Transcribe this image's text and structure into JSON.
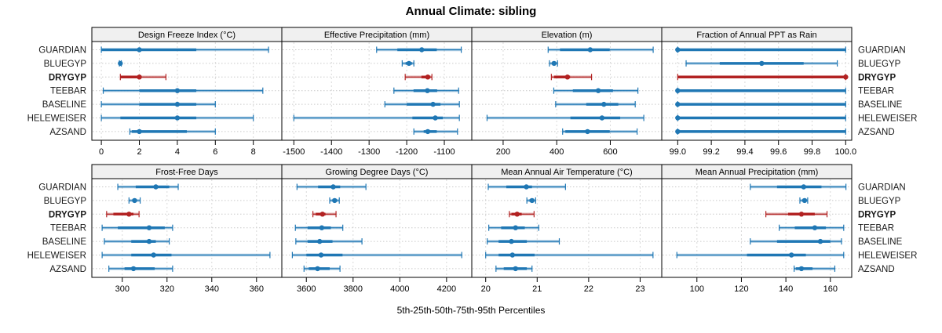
{
  "title": "Annual Climate: sibling",
  "caption": "5th-25th-50th-75th-95th Percentiles",
  "colors": {
    "blue": "#1f77b4",
    "red": "#b22222",
    "strip_bg": "#f0f0f0",
    "panel_border": "#000000",
    "grid": "#d9d9d9",
    "guide": "#c9c9c9",
    "text": "#000000"
  },
  "chart_data": {
    "type": "dotplot",
    "layout": "2 rows x 4 columns trellis",
    "percentiles": [
      "5th",
      "25th",
      "50th",
      "75th",
      "95th"
    ],
    "categories": [
      "GUARDIAN",
      "BLUEGYP",
      "DRYGYP",
      "TEEBAR",
      "BASELINE",
      "HELEWEISER",
      "AZSAND"
    ],
    "highlight_category": "DRYGYP",
    "panels": [
      {
        "title": "Design Freeze Index (°C)",
        "domain": [
          -0.5,
          9.5
        ],
        "ticks": [
          0,
          2,
          4,
          6,
          8
        ],
        "tick_labels": [
          "0",
          "2",
          "4",
          "6",
          "8"
        ],
        "values": [
          [
            0,
            0,
            2,
            5,
            8.8
          ],
          [
            0.95,
            1,
            1,
            1,
            1.05
          ],
          [
            1,
            1,
            2,
            2.1,
            3.4
          ],
          [
            0.1,
            2,
            4,
            5,
            8.5
          ],
          [
            0,
            2,
            4,
            5,
            6
          ],
          [
            0,
            1,
            4,
            5,
            8
          ],
          [
            1.5,
            1.6,
            2,
            4.5,
            6
          ]
        ]
      },
      {
        "title": "Effective Precipitation (mm)",
        "domain": [
          -1532,
          -1027
        ],
        "ticks": [
          -1500,
          -1400,
          -1300,
          -1200,
          -1100
        ],
        "tick_labels": [
          "-1500",
          "-1400",
          "-1300",
          "-1200",
          "-1100"
        ],
        "values": [
          [
            -1280,
            -1225,
            -1160,
            -1120,
            -1055
          ],
          [
            -1212,
            -1203,
            -1194,
            -1186,
            -1181
          ],
          [
            -1204,
            -1161,
            -1144,
            -1137,
            -1133
          ],
          [
            -1234,
            -1182,
            -1145,
            -1119,
            -1062
          ],
          [
            -1258,
            -1200,
            -1130,
            -1110,
            -1060
          ],
          [
            -1500,
            -1185,
            -1124,
            -1104,
            -1060
          ],
          [
            -1181,
            -1155,
            -1144,
            -1120,
            -1065
          ]
        ]
      },
      {
        "title": "Elevation (m)",
        "domain": [
          83,
          792
        ],
        "ticks": [
          200,
          400,
          600
        ],
        "tick_labels": [
          "200",
          "400",
          "600"
        ],
        "values": [
          [
            368,
            412,
            525,
            598,
            760
          ],
          [
            373,
            383,
            390,
            397,
            403
          ],
          [
            380,
            390,
            440,
            450,
            530
          ],
          [
            389,
            460,
            555,
            610,
            703
          ],
          [
            396,
            510,
            576,
            630,
            693
          ],
          [
            140,
            451,
            569,
            637,
            725
          ],
          [
            422,
            432,
            515,
            598,
            700
          ]
        ]
      },
      {
        "title": "Fraction of Annual PPT as Rain",
        "domain": [
          98.905,
          100.036
        ],
        "ticks": [
          99.0,
          99.2,
          99.4,
          99.6,
          99.8,
          100.0
        ],
        "tick_labels": [
          "99.0",
          "99.2",
          "99.4",
          "99.6",
          "99.8",
          "100.0"
        ],
        "values": [
          [
            99.0,
            99.0,
            99.0,
            100.0,
            100.0
          ],
          [
            99.05,
            99.25,
            99.5,
            99.75,
            99.95
          ],
          [
            99.0,
            99.0,
            100.0,
            100.0,
            100.0
          ],
          [
            99.0,
            99.0,
            99.0,
            100.0,
            100.0
          ],
          [
            99.0,
            99.0,
            99.0,
            100.0,
            100.0
          ],
          [
            99.0,
            99.0,
            99.0,
            100.0,
            100.0
          ],
          [
            99.0,
            99.0,
            99.0,
            100.0,
            100.0
          ]
        ]
      },
      {
        "title": "Frost-Free Days",
        "domain": [
          286.4,
          371.3
        ],
        "ticks": [
          300,
          320,
          340,
          360
        ],
        "tick_labels": [
          "300",
          "320",
          "340",
          "360"
        ],
        "values": [
          [
            298,
            306,
            315,
            321,
            325
          ],
          [
            303,
            304.5,
            305.5,
            306.5,
            308
          ],
          [
            293,
            296,
            303,
            305,
            307.5
          ],
          [
            291,
            298,
            312,
            319,
            322.5
          ],
          [
            292,
            304,
            312,
            315,
            321
          ],
          [
            291,
            304,
            314,
            322,
            366
          ],
          [
            294,
            301,
            305,
            314.5,
            322.5
          ]
        ]
      },
      {
        "title": "Growing Degree Days (°C)",
        "domain": [
          3495,
          4308
        ],
        "ticks": [
          3600,
          3800,
          4000,
          4200
        ],
        "tick_labels": [
          "3600",
          "3800",
          "4000",
          "4200"
        ],
        "values": [
          [
            3560,
            3650,
            3715,
            3745,
            3855
          ],
          [
            3700,
            3712,
            3721,
            3731,
            3741
          ],
          [
            3628,
            3640,
            3669,
            3682,
            3727
          ],
          [
            3553,
            3605,
            3666,
            3705,
            3756
          ],
          [
            3555,
            3605,
            3657,
            3712,
            3838
          ],
          [
            3540,
            3600,
            3663,
            3755,
            4265
          ],
          [
            3590,
            3610,
            3648,
            3700,
            3744
          ]
        ]
      },
      {
        "title": "Mean Annual Air Temperature (°C)",
        "domain": [
          19.73,
          23.42
        ],
        "ticks": [
          20,
          21,
          22,
          23
        ],
        "tick_labels": [
          "20",
          "21",
          "22",
          "23"
        ],
        "values": [
          [
            20.05,
            20.4,
            20.79,
            20.9,
            21.55
          ],
          [
            20.8,
            20.85,
            20.9,
            20.93,
            20.97
          ],
          [
            20.46,
            20.5,
            20.61,
            20.7,
            20.94
          ],
          [
            20.06,
            20.3,
            20.58,
            20.76,
            21.03
          ],
          [
            20.03,
            20.25,
            20.5,
            20.8,
            21.43
          ],
          [
            20.0,
            20.25,
            20.52,
            20.95,
            23.25
          ],
          [
            20.2,
            20.35,
            20.58,
            20.8,
            20.9
          ]
        ]
      },
      {
        "title": "Mean Annual Precipitation (mm)",
        "domain": [
          84.2,
          169.6
        ],
        "ticks": [
          100,
          120,
          140,
          160
        ],
        "tick_labels": [
          "100",
          "120",
          "140",
          "160"
        ],
        "values": [
          [
            124,
            136,
            148,
            156,
            167
          ],
          [
            146.3,
            147.5,
            148.4,
            149.2,
            149.8
          ],
          [
            131,
            141,
            147,
            153,
            158.5
          ],
          [
            137,
            144,
            153,
            158,
            166
          ],
          [
            124,
            136,
            155.5,
            160,
            165
          ],
          [
            91,
            122.5,
            142.5,
            149,
            166
          ],
          [
            143.7,
            144.5,
            147,
            152,
            162
          ]
        ]
      }
    ]
  }
}
